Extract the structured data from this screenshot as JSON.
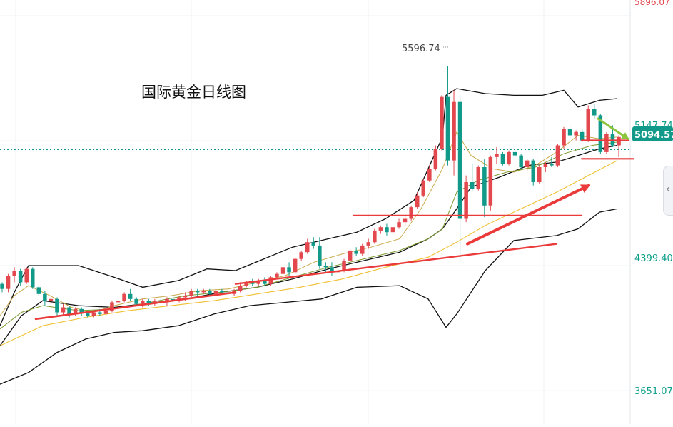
{
  "chart_data": {
    "type": "candlestick",
    "title": "国际黄金日线图",
    "y_axis_labels": [
      "5896.07",
      "5147.74",
      "4399.40",
      "3651.07"
    ],
    "current_price": "5094.57",
    "peak_label": "5596.74",
    "ylim": [
      3451,
      5990
    ],
    "grid": true,
    "candles": [
      {
        "o": 4290,
        "h": 4300,
        "l": 4240,
        "c": 4260
      },
      {
        "o": 4260,
        "h": 4350,
        "l": 4240,
        "c": 4340
      },
      {
        "o": 4340,
        "h": 4390,
        "l": 4300,
        "c": 4370
      },
      {
        "o": 4370,
        "h": 4380,
        "l": 4280,
        "c": 4300
      },
      {
        "o": 4300,
        "h": 4390,
        "l": 4290,
        "c": 4380
      },
      {
        "o": 4380,
        "h": 4390,
        "l": 4260,
        "c": 4270
      },
      {
        "o": 4270,
        "h": 4280,
        "l": 4220,
        "c": 4230
      },
      {
        "o": 4230,
        "h": 4250,
        "l": 4160,
        "c": 4190
      },
      {
        "o": 4190,
        "h": 4220,
        "l": 4170,
        "c": 4200
      },
      {
        "o": 4200,
        "h": 4210,
        "l": 4100,
        "c": 4120
      },
      {
        "o": 4120,
        "h": 4170,
        "l": 4100,
        "c": 4150
      },
      {
        "o": 4150,
        "h": 4160,
        "l": 4090,
        "c": 4110
      },
      {
        "o": 4110,
        "h": 4150,
        "l": 4100,
        "c": 4140
      },
      {
        "o": 4140,
        "h": 4150,
        "l": 4100,
        "c": 4120
      },
      {
        "o": 4120,
        "h": 4130,
        "l": 4090,
        "c": 4100
      },
      {
        "o": 4100,
        "h": 4130,
        "l": 4090,
        "c": 4120
      },
      {
        "o": 4120,
        "h": 4140,
        "l": 4100,
        "c": 4110
      },
      {
        "o": 4110,
        "h": 4140,
        "l": 4100,
        "c": 4130
      },
      {
        "o": 4130,
        "h": 4190,
        "l": 4120,
        "c": 4180
      },
      {
        "o": 4180,
        "h": 4200,
        "l": 4150,
        "c": 4190
      },
      {
        "o": 4190,
        "h": 4240,
        "l": 4180,
        "c": 4230
      },
      {
        "o": 4230,
        "h": 4260,
        "l": 4190,
        "c": 4200
      },
      {
        "o": 4200,
        "h": 4210,
        "l": 4160,
        "c": 4170
      },
      {
        "o": 4170,
        "h": 4200,
        "l": 4150,
        "c": 4190
      },
      {
        "o": 4190,
        "h": 4200,
        "l": 4160,
        "c": 4170
      },
      {
        "o": 4170,
        "h": 4200,
        "l": 4160,
        "c": 4190
      },
      {
        "o": 4190,
        "h": 4210,
        "l": 4170,
        "c": 4180
      },
      {
        "o": 4180,
        "h": 4210,
        "l": 4160,
        "c": 4200
      },
      {
        "o": 4200,
        "h": 4230,
        "l": 4180,
        "c": 4190
      },
      {
        "o": 4190,
        "h": 4220,
        "l": 4180,
        "c": 4210
      },
      {
        "o": 4210,
        "h": 4240,
        "l": 4190,
        "c": 4220
      },
      {
        "o": 4220,
        "h": 4260,
        "l": 4210,
        "c": 4250
      },
      {
        "o": 4250,
        "h": 4260,
        "l": 4220,
        "c": 4240
      },
      {
        "o": 4240,
        "h": 4260,
        "l": 4230,
        "c": 4250
      },
      {
        "o": 4250,
        "h": 4260,
        "l": 4220,
        "c": 4230
      },
      {
        "o": 4230,
        "h": 4260,
        "l": 4220,
        "c": 4250
      },
      {
        "o": 4250,
        "h": 4260,
        "l": 4230,
        "c": 4240
      },
      {
        "o": 4240,
        "h": 4260,
        "l": 4220,
        "c": 4230
      },
      {
        "o": 4230,
        "h": 4260,
        "l": 4220,
        "c": 4250
      },
      {
        "o": 4250,
        "h": 4300,
        "l": 4240,
        "c": 4280
      },
      {
        "o": 4280,
        "h": 4310,
        "l": 4270,
        "c": 4300
      },
      {
        "o": 4300,
        "h": 4320,
        "l": 4280,
        "c": 4290
      },
      {
        "o": 4290,
        "h": 4320,
        "l": 4280,
        "c": 4310
      },
      {
        "o": 4310,
        "h": 4330,
        "l": 4280,
        "c": 4290
      },
      {
        "o": 4290,
        "h": 4340,
        "l": 4280,
        "c": 4330
      },
      {
        "o": 4330,
        "h": 4360,
        "l": 4320,
        "c": 4350
      },
      {
        "o": 4350,
        "h": 4400,
        "l": 4340,
        "c": 4390
      },
      {
        "o": 4390,
        "h": 4420,
        "l": 4340,
        "c": 4360
      },
      {
        "o": 4360,
        "h": 4450,
        "l": 4350,
        "c": 4440
      },
      {
        "o": 4440,
        "h": 4490,
        "l": 4430,
        "c": 4480
      },
      {
        "o": 4480,
        "h": 4560,
        "l": 4470,
        "c": 4540
      },
      {
        "o": 4540,
        "h": 4570,
        "l": 4500,
        "c": 4520
      },
      {
        "o": 4520,
        "h": 4570,
        "l": 4380,
        "c": 4400
      },
      {
        "o": 4400,
        "h": 4420,
        "l": 4360,
        "c": 4390
      },
      {
        "o": 4390,
        "h": 4420,
        "l": 4340,
        "c": 4360
      },
      {
        "o": 4360,
        "h": 4380,
        "l": 4340,
        "c": 4370
      },
      {
        "o": 4370,
        "h": 4440,
        "l": 4360,
        "c": 4430
      },
      {
        "o": 4430,
        "h": 4500,
        "l": 4420,
        "c": 4490
      },
      {
        "o": 4490,
        "h": 4510,
        "l": 4460,
        "c": 4470
      },
      {
        "o": 4470,
        "h": 4530,
        "l": 4460,
        "c": 4520
      },
      {
        "o": 4520,
        "h": 4560,
        "l": 4500,
        "c": 4540
      },
      {
        "o": 4540,
        "h": 4620,
        "l": 4530,
        "c": 4610
      },
      {
        "o": 4610,
        "h": 4640,
        "l": 4590,
        "c": 4630
      },
      {
        "o": 4630,
        "h": 4650,
        "l": 4580,
        "c": 4600
      },
      {
        "o": 4600,
        "h": 4640,
        "l": 4580,
        "c": 4630
      },
      {
        "o": 4630,
        "h": 4680,
        "l": 4620,
        "c": 4660
      },
      {
        "o": 4660,
        "h": 4700,
        "l": 4640,
        "c": 4680
      },
      {
        "o": 4680,
        "h": 4760,
        "l": 4670,
        "c": 4750
      },
      {
        "o": 4750,
        "h": 4840,
        "l": 4740,
        "c": 4820
      },
      {
        "o": 4820,
        "h": 4920,
        "l": 4810,
        "c": 4910
      },
      {
        "o": 4910,
        "h": 5000,
        "l": 4900,
        "c": 4980
      },
      {
        "o": 4980,
        "h": 5120,
        "l": 4970,
        "c": 5100
      },
      {
        "o": 5100,
        "h": 5420,
        "l": 5090,
        "c": 5410
      },
      {
        "o": 5410,
        "h": 5597,
        "l": 5000,
        "c": 5030
      },
      {
        "o": 5030,
        "h": 5450,
        "l": 4940,
        "c": 5380
      },
      {
        "o": 5380,
        "h": 5420,
        "l": 4430,
        "c": 4680
      },
      {
        "o": 4680,
        "h": 4940,
        "l": 4660,
        "c": 4900
      },
      {
        "o": 4900,
        "h": 5010,
        "l": 4850,
        "c": 4860
      },
      {
        "o": 4860,
        "h": 5000,
        "l": 4850,
        "c": 4990
      },
      {
        "o": 4990,
        "h": 5040,
        "l": 4690,
        "c": 4760
      },
      {
        "o": 4760,
        "h": 5060,
        "l": 4730,
        "c": 5050
      },
      {
        "o": 5050,
        "h": 5110,
        "l": 5010,
        "c": 5070
      },
      {
        "o": 5070,
        "h": 5080,
        "l": 5000,
        "c": 5010
      },
      {
        "o": 5010,
        "h": 5090,
        "l": 5000,
        "c": 5080
      },
      {
        "o": 5080,
        "h": 5100,
        "l": 5050,
        "c": 5060
      },
      {
        "o": 5060,
        "h": 5070,
        "l": 4980,
        "c": 4990
      },
      {
        "o": 4990,
        "h": 5040,
        "l": 4970,
        "c": 5030
      },
      {
        "o": 5030,
        "h": 5040,
        "l": 4880,
        "c": 4900
      },
      {
        "o": 4900,
        "h": 5000,
        "l": 4890,
        "c": 4990
      },
      {
        "o": 4990,
        "h": 5020,
        "l": 4960,
        "c": 5010
      },
      {
        "o": 5010,
        "h": 5050,
        "l": 4990,
        "c": 5000
      },
      {
        "o": 5000,
        "h": 5130,
        "l": 4990,
        "c": 5120
      },
      {
        "o": 5120,
        "h": 5230,
        "l": 5100,
        "c": 5220
      },
      {
        "o": 5220,
        "h": 5240,
        "l": 5160,
        "c": 5180
      },
      {
        "o": 5180,
        "h": 5210,
        "l": 5150,
        "c": 5200
      },
      {
        "o": 5200,
        "h": 5220,
        "l": 5140,
        "c": 5150
      },
      {
        "o": 5150,
        "h": 5360,
        "l": 5140,
        "c": 5340
      },
      {
        "o": 5340,
        "h": 5370,
        "l": 5280,
        "c": 5300
      },
      {
        "o": 5300,
        "h": 5310,
        "l": 5070,
        "c": 5080
      },
      {
        "o": 5080,
        "h": 5200,
        "l": 5070,
        "c": 5190
      },
      {
        "o": 5190,
        "h": 5240,
        "l": 5110,
        "c": 5120
      },
      {
        "o": 5120,
        "h": 5180,
        "l": 5050,
        "c": 5170
      }
    ],
    "lines": {
      "bb_upper": [
        [
          0,
          4040
        ],
        [
          20,
          4240
        ],
        [
          40,
          4400
        ],
        [
          60,
          4400
        ],
        [
          110,
          4400
        ],
        [
          160,
          4330
        ],
        [
          200,
          4270
        ],
        [
          250,
          4310
        ],
        [
          290,
          4380
        ],
        [
          330,
          4370
        ],
        [
          370,
          4440
        ],
        [
          410,
          4510
        ],
        [
          460,
          4560
        ],
        [
          500,
          4600
        ],
        [
          540,
          4680
        ],
        [
          580,
          4790
        ],
        [
          620,
          5170
        ],
        [
          625,
          5420
        ],
        [
          640,
          5460
        ],
        [
          680,
          5430
        ],
        [
          720,
          5420
        ],
        [
          760,
          5420
        ],
        [
          790,
          5450
        ],
        [
          810,
          5350
        ],
        [
          840,
          5390
        ],
        [
          865,
          5400
        ]
      ],
      "bb_middle": [
        [
          0,
          3920
        ],
        [
          30,
          4100
        ],
        [
          60,
          4190
        ],
        [
          110,
          4160
        ],
        [
          160,
          4150
        ],
        [
          200,
          4170
        ],
        [
          260,
          4200
        ],
        [
          310,
          4240
        ],
        [
          360,
          4270
        ],
        [
          410,
          4320
        ],
        [
          460,
          4380
        ],
        [
          510,
          4430
        ],
        [
          560,
          4480
        ],
        [
          600,
          4560
        ],
        [
          620,
          4620
        ],
        [
          640,
          4740
        ],
        [
          660,
          4870
        ],
        [
          700,
          4930
        ],
        [
          740,
          5000
        ],
        [
          780,
          5020
        ],
        [
          810,
          5060
        ],
        [
          840,
          5100
        ],
        [
          865,
          5120
        ]
      ],
      "bb_lower": [
        [
          0,
          3690
        ],
        [
          40,
          3760
        ],
        [
          80,
          3880
        ],
        [
          120,
          3960
        ],
        [
          160,
          4000
        ],
        [
          200,
          4010
        ],
        [
          250,
          4040
        ],
        [
          300,
          4110
        ],
        [
          350,
          4160
        ],
        [
          400,
          4180
        ],
        [
          450,
          4200
        ],
        [
          500,
          4270
        ],
        [
          560,
          4280
        ],
        [
          600,
          4200
        ],
        [
          625,
          4030
        ],
        [
          640,
          4110
        ],
        [
          680,
          4370
        ],
        [
          720,
          4550
        ],
        [
          780,
          4580
        ],
        [
          810,
          4620
        ],
        [
          840,
          4720
        ],
        [
          865,
          4740
        ]
      ],
      "ma_fast": [
        [
          0,
          4100
        ],
        [
          20,
          4220
        ],
        [
          40,
          4280
        ],
        [
          70,
          4220
        ],
        [
          100,
          4150
        ],
        [
          130,
          4120
        ],
        [
          160,
          4160
        ],
        [
          200,
          4200
        ],
        [
          240,
          4220
        ],
        [
          280,
          4250
        ],
        [
          320,
          4260
        ],
        [
          360,
          4300
        ],
        [
          400,
          4340
        ],
        [
          440,
          4420
        ],
        [
          480,
          4470
        ],
        [
          520,
          4510
        ],
        [
          560,
          4560
        ],
        [
          590,
          4740
        ],
        [
          620,
          4980
        ],
        [
          640,
          5200
        ],
        [
          660,
          5060
        ],
        [
          690,
          4980
        ],
        [
          720,
          4960
        ],
        [
          750,
          5000
        ],
        [
          780,
          5080
        ],
        [
          810,
          5180
        ],
        [
          840,
          5160
        ],
        [
          865,
          5170
        ]
      ],
      "ma_slow": [
        [
          0,
          4020
        ],
        [
          30,
          4120
        ],
        [
          60,
          4160
        ],
        [
          110,
          4130
        ],
        [
          160,
          4140
        ],
        [
          210,
          4180
        ],
        [
          260,
          4220
        ],
        [
          310,
          4240
        ],
        [
          360,
          4270
        ],
        [
          410,
          4330
        ],
        [
          460,
          4390
        ],
        [
          510,
          4440
        ],
        [
          560,
          4490
        ],
        [
          600,
          4560
        ],
        [
          620,
          4620
        ],
        [
          640,
          4840
        ],
        [
          670,
          4910
        ],
        [
          710,
          4960
        ],
        [
          750,
          4990
        ],
        [
          790,
          5070
        ],
        [
          830,
          5120
        ],
        [
          865,
          5140
        ]
      ],
      "ma_long": [
        [
          0,
          3920
        ],
        [
          60,
          4040
        ],
        [
          120,
          4090
        ],
        [
          180,
          4130
        ],
        [
          240,
          4160
        ],
        [
          300,
          4190
        ],
        [
          360,
          4230
        ],
        [
          420,
          4270
        ],
        [
          480,
          4320
        ],
        [
          540,
          4390
        ],
        [
          600,
          4450
        ],
        [
          640,
          4540
        ],
        [
          680,
          4640
        ],
        [
          730,
          4740
        ],
        [
          780,
          4840
        ],
        [
          820,
          4930
        ],
        [
          865,
          5030
        ]
      ]
    },
    "annotations": {
      "support_trend": [
        [
          50,
          4080
        ],
        [
          330,
          4240
        ]
      ],
      "support_trend_2": [
        [
          330,
          4290
        ],
        [
          780,
          4530
        ]
      ],
      "horizontal_support_mid": [
        [
          495,
          4700
        ],
        [
          815,
          4700
        ]
      ],
      "horizontal_resistance": [
        [
          815,
          5150
        ],
        [
          880,
          5150
        ]
      ],
      "horizontal_support_top": [
        [
          815,
          5040
        ],
        [
          888,
          5040
        ]
      ],
      "up_arrow": [
        [
          655,
          4530
        ],
        [
          825,
          4880
        ]
      ],
      "down_arrow": [
        [
          838,
          5280
        ],
        [
          880,
          5160
        ]
      ]
    },
    "colors": {
      "up": "#e2484e",
      "down": "#11998a",
      "bb": "#111111",
      "ma_fast": "#c9a94a",
      "ma_slow": "#7a9a2e",
      "ma_long": "#f0c030",
      "trend": "#ea3a3a",
      "arrow_down": "#8cc63f",
      "price_tag": "#11998a"
    }
  },
  "ui": {
    "nav_icon": "chevron-left-icon",
    "nav_glyph": "‹"
  }
}
